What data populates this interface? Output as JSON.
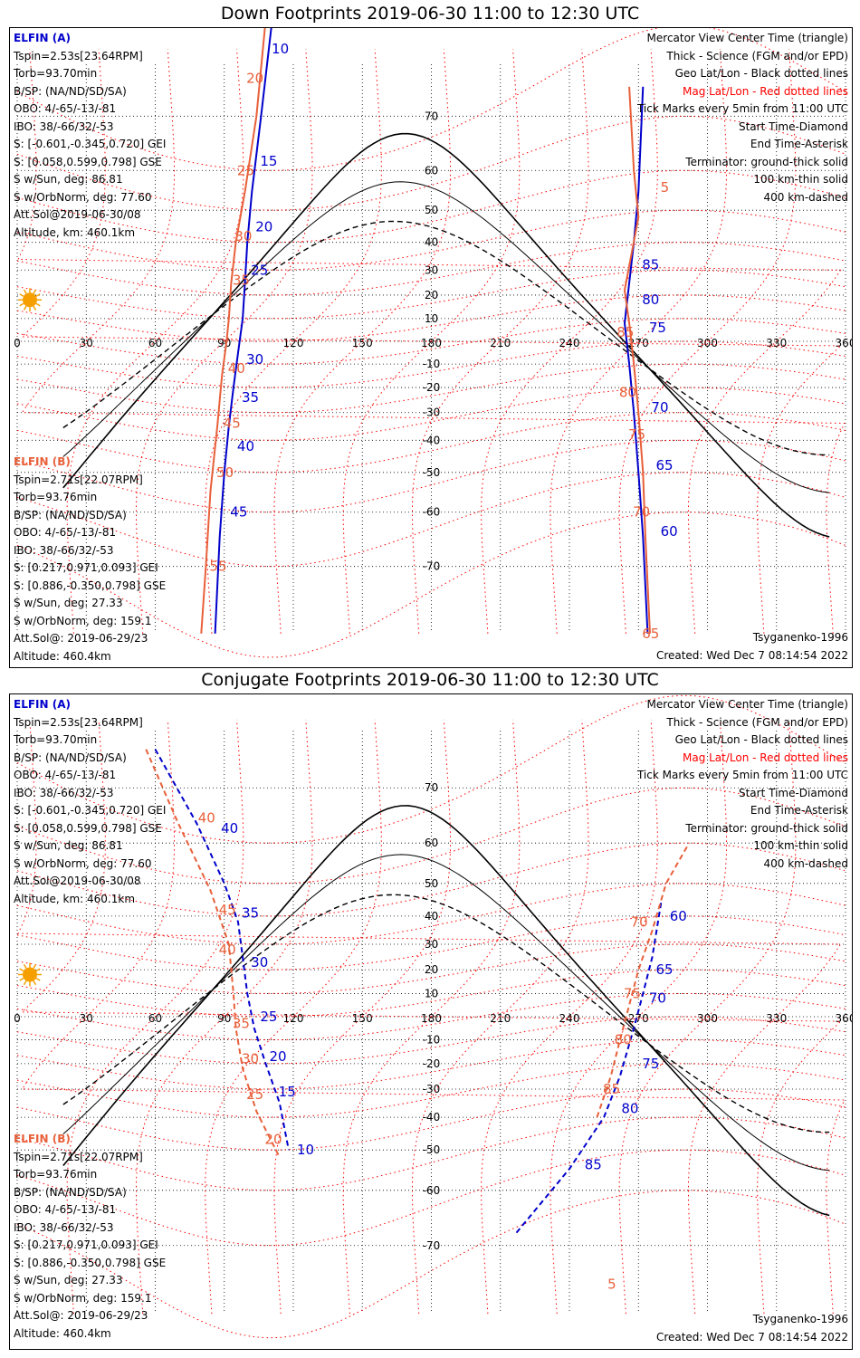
{
  "panels": [
    {
      "title": "Down Footprints 2019-06-30 11:00 to 12:30 UTC",
      "elfin_a": {
        "name": "ELFIN (A)",
        "lines": [
          "Tspin=2.53s[23.64RPM]",
          "Torb=93.70min",
          "B/SP: (NA/ND/SD/SA)",
          "OBO: 4/-65/-13/-81",
          "IBO: 38/-66/32/-53",
          "S: [-0.601,-0.345,0.720] GEI",
          "S: [0.058,0.599,0.798] GSE",
          "S w/Sun, deg: 86.81",
          "S w/OrbNorm, deg: 77.60",
          "Att.Sol@2019-06-30/08",
          "Altitude, km: 460.1km"
        ]
      },
      "elfin_b": {
        "name": "ELFIN (B)",
        "lines": [
          "Tspin=2.71s[22.07RPM]",
          "Torb=93.76min",
          "B/SP: (NA/ND/SD/SA)",
          "OBO: 4/-65/-13/-81",
          "IBO: 38/-66/32/-53",
          "S: [0.217,0.971,0.093] GEI",
          "S: [0.886,-0.350,0.798] GSE",
          "S w/Sun, deg: 27.33",
          "S w/OrbNorm, deg: 159.1",
          "Att.Sol@: 2019-06-29/23"
        ]
      },
      "altitude_b": "Altitude: 460.4km",
      "legend": [
        "Mercator View Center Time (triangle)",
        "Thick - Science (FGM and/or EPD)",
        "Geo Lat/Lon - Black dotted lines",
        "Mag Lat/Lon - Red dotted lines",
        "Tick Marks every 5min from 11:00 UTC",
        "Start Time-Diamond",
        "End Time-Asterisk",
        "Terminator: ground-thick solid",
        "100 km-thin solid",
        "400 km-dashed"
      ],
      "model": "Tsyganenko-1996",
      "created": "Created: Wed Dec  7 08:14:54 2022"
    },
    {
      "title": "Conjugate Footprints 2019-06-30 11:00 to 12:30 UTC",
      "elfin_a": {
        "name": "ELFIN (A)",
        "lines": [
          "Tspin=2.53s[23.64RPM]",
          "Torb=93.70min",
          "B/SP: (NA/ND/SD/SA)",
          "OBO: 4/-65/-13/-81",
          "IBO: 38/-66/32/-53",
          "S: [-0.601,-0.345,0.720] GEI",
          "S: [0.058,0.599,0.798] GSE",
          "S w/Sun, deg: 86.81",
          "S w/OrbNorm, deg: 77.60",
          "Att.Sol@2019-06-30/08",
          "Altitude, km: 460.1km"
        ]
      },
      "elfin_b": {
        "name": "ELFIN (B)",
        "lines": [
          "Tspin=2.71s[22.07RPM]",
          "Torb=93.76min",
          "B/SP: (NA/ND/SD/SA)",
          "OBO: 4/-65/-13/-81",
          "IBO: 38/-66/32/-53",
          "S: [0.217,0.971,0.093] GEI",
          "S: [0.886,-0.350,0.798] GSE",
          "S w/Sun, deg: 27.33",
          "S w/OrbNorm, deg: 159.1",
          "Att.Sol@: 2019-06-29/23"
        ]
      },
      "altitude_b": "Altitude: 460.4km",
      "legend": [
        "Mercator View Center Time (triangle)",
        "Thick - Science (FGM and/or EPD)",
        "Geo Lat/Lon - Black dotted lines",
        "Mag Lat/Lon - Red dotted lines",
        "Tick Marks every 5min from 11:00 UTC",
        "Start Time-Diamond",
        "End Time-Asterisk",
        "Terminator: ground-thick solid",
        "100 km-thin solid",
        "400 km-dashed"
      ],
      "model": "Tsyganenko-1996",
      "created": "Created: Wed Dec  7 08:14:54 2022"
    }
  ],
  "colors": {
    "elfin_a": "#0000cc",
    "elfin_b": "#e8603a",
    "mag_grid": "#ff0000",
    "geo_grid": "#000000",
    "sun": "#f5a000"
  },
  "chart_data": [
    {
      "type": "line",
      "title": "Down Footprints 2019-06-30 11:00 to 12:30 UTC",
      "x_ticks": [
        0,
        30,
        60,
        90,
        120,
        150,
        180,
        210,
        240,
        270,
        300,
        330,
        360
      ],
      "y_ticks": [
        70,
        60,
        50,
        40,
        30,
        20,
        10,
        -10,
        -20,
        -30,
        -40,
        -50,
        -60,
        -70
      ],
      "xlim": [
        0,
        360
      ],
      "series": [
        {
          "name": "ELFIN (A)",
          "segments": [
            [
              [
                112,
                82
              ],
              [
                106,
                70
              ],
              [
                102,
                55
              ],
              [
                100,
                40
              ],
              [
                99,
                25
              ],
              [
                98,
                10
              ],
              [
                96,
                -5
              ],
              [
                94,
                -20
              ],
              [
                92,
                -35
              ],
              [
                90,
                -50
              ],
              [
                88,
                -65
              ],
              [
                86,
                -78
              ]
            ],
            [
              [
                272,
                74
              ],
              [
                270,
                55
              ],
              [
                268,
                40
              ],
              [
                266,
                25
              ],
              [
                264,
                8
              ],
              [
                266,
                -10
              ],
              [
                268,
                -30
              ],
              [
                270,
                -50
              ],
              [
                272,
                -65
              ],
              [
                274,
                -78
              ]
            ]
          ],
          "tick_labels": [
            [
              "10",
              109,
              78
            ],
            [
              "15",
              104,
              62
            ],
            [
              "20",
              102,
              45
            ],
            [
              "25",
              100,
              30
            ],
            [
              "30",
              98,
              -8
            ],
            [
              "35",
              96,
              -24
            ],
            [
              "40",
              94,
              -42
            ],
            [
              "45",
              91,
              -60
            ],
            [
              "85",
              270,
              32
            ],
            [
              "80",
              270,
              18
            ],
            [
              "75",
              273,
              6
            ],
            [
              "70",
              274,
              -28
            ],
            [
              "65",
              276,
              -48
            ],
            [
              "60",
              278,
              -64
            ]
          ]
        },
        {
          "name": "ELFIN (B)",
          "segments": [
            [
              [
                109,
                82
              ],
              [
                104,
                70
              ],
              [
                99,
                55
              ],
              [
                95,
                40
              ],
              [
                93,
                25
              ],
              [
                92,
                10
              ],
              [
                91,
                0
              ],
              [
                89,
                -15
              ],
              [
                87,
                -35
              ],
              [
                84,
                -55
              ],
              [
                82,
                -70
              ],
              [
                80,
                -78
              ]
            ],
            [
              [
                266,
                74
              ],
              [
                268,
                60
              ],
              [
                270,
                48
              ],
              [
                264,
                22
              ],
              [
                266,
                8
              ],
              [
                268,
                -10
              ],
              [
                270,
                -30
              ],
              [
                272,
                -50
              ],
              [
                273,
                -65
              ],
              [
                275,
                -78
              ]
            ]
          ],
          "tick_labels": [
            [
              "20",
              98,
              75
            ],
            [
              "25",
              94,
              60
            ],
            [
              "30",
              93,
              42
            ],
            [
              "35",
              92,
              26
            ],
            [
              "40",
              90,
              -12
            ],
            [
              "45",
              88,
              -34
            ],
            [
              "50",
              85,
              -50
            ],
            [
              "55",
              82,
              -70
            ],
            [
              "5",
              278,
              56
            ],
            [
              "85",
              259,
              4
            ],
            [
              "80",
              260,
              -22
            ],
            [
              "75",
              264,
              -38
            ],
            [
              "70",
              266,
              -60
            ],
            [
              "65",
              270,
              -78
            ]
          ]
        }
      ],
      "sun_position": [
        0,
        18
      ]
    },
    {
      "type": "line",
      "title": "Conjugate Footprints 2019-06-30 11:00 to 12:30 UTC",
      "x_ticks": [
        0,
        30,
        60,
        90,
        120,
        150,
        180,
        210,
        240,
        270,
        300,
        330,
        360
      ],
      "y_ticks": [
        70,
        60,
        50,
        40,
        30,
        20,
        10,
        -10,
        -20,
        -30,
        -40,
        -50,
        -60,
        -70
      ],
      "xlim": [
        0,
        360
      ],
      "series": [
        {
          "name": "ELFIN (A)",
          "segments": [
            [
              [
                60,
                75
              ],
              [
                78,
                64
              ],
              [
                90,
                50
              ],
              [
                96,
                38
              ],
              [
                98,
                25
              ],
              [
                100,
                10
              ],
              [
                103,
                -5
              ],
              [
                108,
                -20
              ],
              [
                114,
                -35
              ],
              [
                118,
                -50
              ]
            ],
            [
              [
                217,
                -68
              ],
              [
                240,
                -55
              ],
              [
                255,
                -40
              ],
              [
                262,
                -25
              ],
              [
                268,
                -5
              ],
              [
                272,
                10
              ],
              [
                276,
                25
              ],
              [
                280,
                45
              ]
            ]
          ],
          "tick_labels": [
            [
              "40",
              87,
              63
            ],
            [
              "35",
              96,
              41
            ],
            [
              "30",
              100,
              23
            ],
            [
              "25",
              104,
              0
            ],
            [
              "20",
              108,
              -17
            ],
            [
              "15",
              112,
              -31
            ],
            [
              "10",
              120,
              -50
            ],
            [
              "85",
              245,
              -54
            ],
            [
              "80",
              261,
              -37
            ],
            [
              "75",
              270,
              -20
            ],
            [
              "70",
              273,
              8
            ],
            [
              "65",
              276,
              20
            ],
            [
              "60",
              282,
              40
            ]
          ]
        },
        {
          "name": "ELFIN (B)",
          "segments": [
            [
              [
                56,
                75
              ],
              [
                70,
                64
              ],
              [
                84,
                48
              ],
              [
                92,
                30
              ],
              [
                94,
                10
              ],
              [
                95,
                -5
              ],
              [
                98,
                -22
              ],
              [
                104,
                -38
              ],
              [
                114,
                -52
              ]
            ],
            [
              [
                252,
                -40
              ],
              [
                258,
                -25
              ],
              [
                262,
                -10
              ],
              [
                266,
                5
              ],
              [
                270,
                20
              ],
              [
                276,
                35
              ],
              [
                282,
                50
              ],
              [
                292,
                60
              ]
            ]
          ],
          "tick_labels": [
            [
              "40",
              77,
              65
            ],
            [
              "45",
              86,
              42
            ],
            [
              "40",
              86,
              28
            ],
            [
              "35",
              92,
              -3
            ],
            [
              "30",
              96,
              -18
            ],
            [
              "25",
              98,
              -32
            ],
            [
              "20",
              106,
              -47
            ],
            [
              "85",
              253,
              -30
            ],
            [
              "80",
              258,
              -10
            ],
            [
              "75",
              262,
              10
            ],
            [
              "70",
              265,
              38
            ],
            [
              "5",
              255,
              -75
            ]
          ]
        }
      ],
      "sun_position": [
        0,
        18
      ]
    }
  ]
}
